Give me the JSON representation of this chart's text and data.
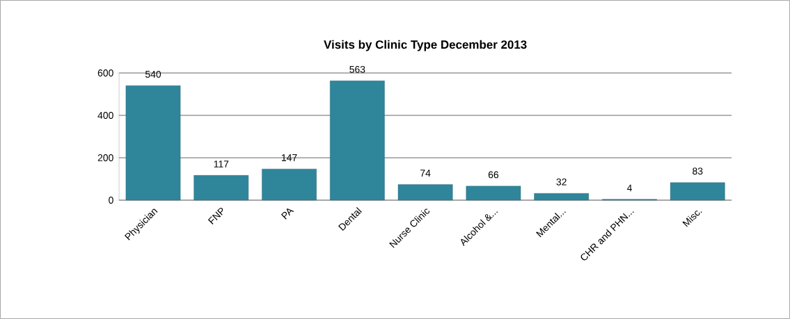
{
  "chart_data": {
    "type": "bar",
    "title": "Visits by Clinic Type December 2013",
    "categories": [
      "Physician",
      "FNP",
      "PA",
      "Dental",
      "Nurse Clinic",
      "Alcohol &...",
      "Mental...",
      "CHR and PHN...",
      "Misc."
    ],
    "values": [
      540,
      117,
      147,
      563,
      74,
      66,
      32,
      4,
      83
    ],
    "color": "#2f869b",
    "ylim": [
      0,
      600
    ],
    "yticks": [
      0,
      200,
      400,
      600
    ],
    "grid": "y",
    "data_labels": true
  }
}
